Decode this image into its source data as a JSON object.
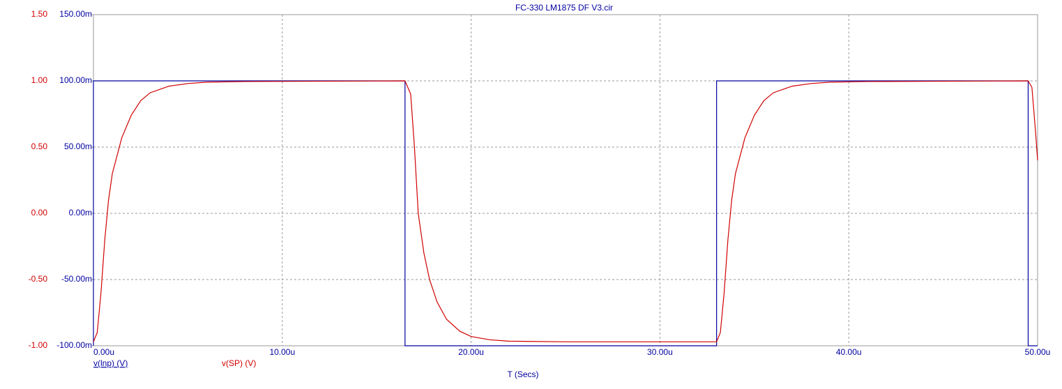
{
  "chart_data": {
    "type": "line",
    "title": "FC-330 LM1875 DF V3.cir",
    "xlabel": "T (Secs)",
    "xlim": [
      0,
      50
    ],
    "xticks": [
      {
        "value": 0,
        "label": "0.00u"
      },
      {
        "value": 10,
        "label": "10.00u"
      },
      {
        "value": 20,
        "label": "20.00u"
      },
      {
        "value": 30,
        "label": "30.00u"
      },
      {
        "value": 40,
        "label": "40.00u"
      },
      {
        "value": 50,
        "label": "50.00u"
      }
    ],
    "ylim": [
      -1,
      1.5
    ],
    "yticks": [
      {
        "value": -1,
        "label": "-1.00"
      },
      {
        "value": -0.5,
        "label": "-0.50"
      },
      {
        "value": 0,
        "label": "0.00"
      },
      {
        "value": 0.5,
        "label": "0.50"
      },
      {
        "value": 1,
        "label": "1.00"
      },
      {
        "value": 1.5,
        "label": "1.50"
      }
    ],
    "y2lim": [
      -0.1,
      0.15
    ],
    "y2ticks": [
      {
        "value": -0.1,
        "label": "-100.00m"
      },
      {
        "value": -0.05,
        "label": "-50.00m"
      },
      {
        "value": 0,
        "label": "0.00m"
      },
      {
        "value": 0.05,
        "label": "50.00m"
      },
      {
        "value": 0.1,
        "label": "100.00m"
      },
      {
        "value": 0.15,
        "label": "150.00m"
      }
    ],
    "grid": true,
    "series": [
      {
        "name": "v(lnp) (V)",
        "color": "#0000a0",
        "axis": "y2",
        "x": [
          0,
          0,
          16.5,
          16.5,
          33,
          33,
          49.5,
          49.5,
          50
        ],
        "values": [
          -0.1,
          0.1,
          0.1,
          -0.1,
          -0.1,
          0.1,
          0.1,
          -0.1,
          -0.1
        ]
      },
      {
        "name": "v(SP) (V)",
        "color": "#d00000",
        "x": [
          0,
          0.2,
          0.4,
          0.6,
          0.8,
          1.0,
          1.5,
          2,
          2.5,
          3,
          4,
          5,
          6,
          8,
          16.5,
          16.8,
          17.0,
          17.2,
          17.5,
          17.8,
          18.2,
          18.7,
          19.4,
          20,
          21,
          22,
          25,
          33,
          33.2,
          33.4,
          33.6,
          33.8,
          34,
          34.5,
          35,
          35.5,
          36,
          37,
          38,
          39,
          41,
          49.5,
          49.7,
          49.9,
          50
        ],
        "values": [
          -0.97,
          -0.9,
          -0.6,
          -0.2,
          0.1,
          0.3,
          0.57,
          0.74,
          0.85,
          0.91,
          0.96,
          0.98,
          0.99,
          0.995,
          1.0,
          0.9,
          0.5,
          0.0,
          -0.3,
          -0.5,
          -0.67,
          -0.8,
          -0.89,
          -0.93,
          -0.955,
          -0.965,
          -0.97,
          -0.97,
          -0.9,
          -0.6,
          -0.2,
          0.1,
          0.3,
          0.57,
          0.74,
          0.85,
          0.91,
          0.96,
          0.98,
          0.99,
          0.995,
          1.0,
          0.95,
          0.6,
          0.4
        ]
      }
    ]
  }
}
